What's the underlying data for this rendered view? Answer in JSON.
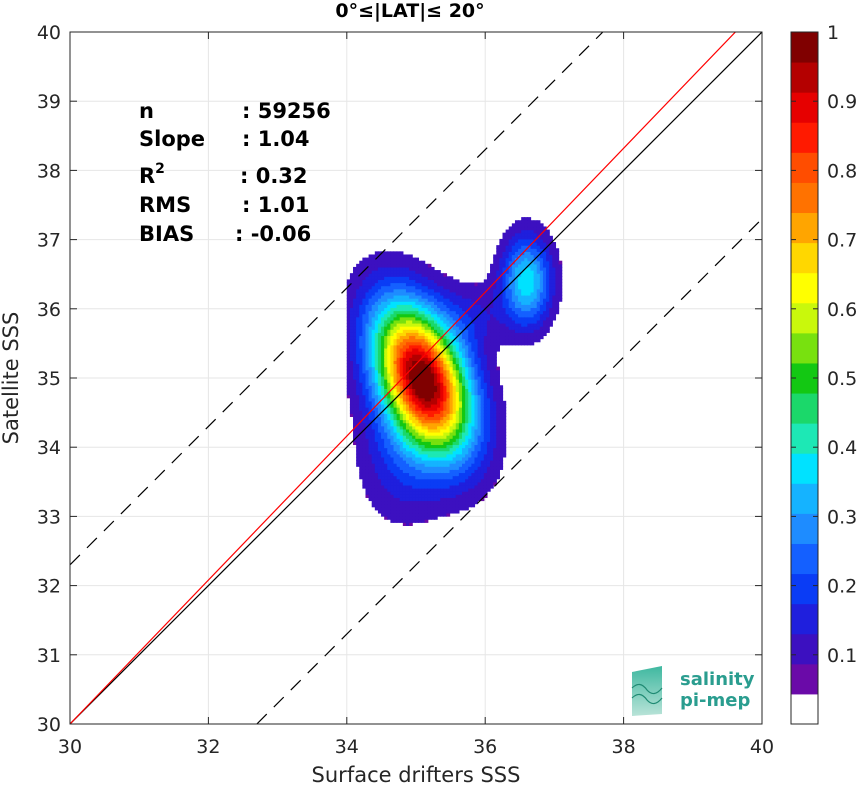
{
  "chart_data": {
    "type": "contour",
    "title": "0°≤|LAT|≤ 20°",
    "xlabel": "Surface drifters SSS",
    "ylabel": "Satellite SSS",
    "xlim": [
      30,
      40
    ],
    "ylim": [
      30,
      40
    ],
    "xticks": [
      30,
      32,
      34,
      36,
      38,
      40
    ],
    "yticks": [
      30,
      31,
      32,
      33,
      34,
      35,
      36,
      37,
      38,
      39,
      40
    ],
    "grid": true,
    "stats": [
      {
        "label": "n",
        "value": ": 59256"
      },
      {
        "label": "Slope",
        "value": ": 1.04"
      },
      {
        "label": "R",
        "sup": "2",
        "value": ": 0.32"
      },
      {
        "label": "RMS",
        "value": ": 1.01"
      },
      {
        "label": "BIAS",
        "value": ": -0.06"
      }
    ],
    "lines": [
      {
        "name": "one-to-one",
        "color": "#000000",
        "style": "solid",
        "x": [
          30,
          40
        ],
        "y": [
          30,
          40
        ]
      },
      {
        "name": "regression",
        "color": "#ff0000",
        "style": "solid",
        "x": [
          30,
          40
        ],
        "y": [
          30.0,
          40.4
        ]
      },
      {
        "name": "upper-bound",
        "color": "#000000",
        "style": "dashed",
        "x": [
          30,
          37.7
        ],
        "y": [
          32.3,
          40
        ]
      },
      {
        "name": "lower-bound",
        "color": "#000000",
        "style": "dashed",
        "x": [
          32.7,
          40
        ],
        "y": [
          30,
          37.3
        ]
      }
    ],
    "density_peaks": [
      {
        "x": 35.1,
        "y": 35.0,
        "level": 1.0
      },
      {
        "x": 36.6,
        "y": 36.4,
        "level": 0.35
      }
    ],
    "colorbar": {
      "min": 0,
      "max": 1,
      "ticks": [
        0.1,
        0.2,
        0.3,
        0.4,
        0.5,
        0.6,
        0.7,
        0.8,
        0.9,
        1
      ],
      "colors": [
        "#ffffff",
        "#6a0aa8",
        "#3c10c0",
        "#1f1fdd",
        "#0a3cf5",
        "#1460ff",
        "#1e8cff",
        "#15b3ff",
        "#00e2ff",
        "#1de8b5",
        "#1bd86a",
        "#13c813",
        "#78e10f",
        "#c9f80c",
        "#ffff00",
        "#ffd700",
        "#ffa500",
        "#ff7200",
        "#ff4d00",
        "#ff1a00",
        "#e60000",
        "#b40000",
        "#800000"
      ]
    },
    "logo": {
      "line1": "salinity",
      "line2": "pi-mep"
    }
  }
}
